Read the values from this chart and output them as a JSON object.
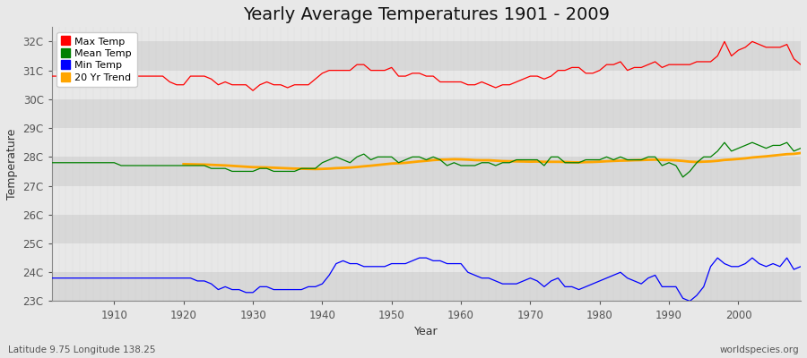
{
  "title": "Yearly Average Temperatures 1901 - 2009",
  "xlabel": "Year",
  "ylabel": "Temperature",
  "footnote_left": "Latitude 9.75 Longitude 138.25",
  "footnote_right": "worldspecies.org",
  "years": [
    1901,
    1902,
    1903,
    1904,
    1905,
    1906,
    1907,
    1908,
    1909,
    1910,
    1911,
    1912,
    1913,
    1914,
    1915,
    1916,
    1917,
    1918,
    1919,
    1920,
    1921,
    1922,
    1923,
    1924,
    1925,
    1926,
    1927,
    1928,
    1929,
    1930,
    1931,
    1932,
    1933,
    1934,
    1935,
    1936,
    1937,
    1938,
    1939,
    1940,
    1941,
    1942,
    1943,
    1944,
    1945,
    1946,
    1947,
    1948,
    1949,
    1950,
    1951,
    1952,
    1953,
    1954,
    1955,
    1956,
    1957,
    1958,
    1959,
    1960,
    1961,
    1962,
    1963,
    1964,
    1965,
    1966,
    1967,
    1968,
    1969,
    1970,
    1971,
    1972,
    1973,
    1974,
    1975,
    1976,
    1977,
    1978,
    1979,
    1980,
    1981,
    1982,
    1983,
    1984,
    1985,
    1986,
    1987,
    1988,
    1989,
    1990,
    1991,
    1992,
    1993,
    1994,
    1995,
    1996,
    1997,
    1998,
    1999,
    2000,
    2001,
    2002,
    2003,
    2004,
    2005,
    2006,
    2007,
    2008,
    2009
  ],
  "max_temp": [
    30.8,
    30.8,
    30.8,
    30.8,
    30.8,
    30.8,
    30.8,
    30.8,
    30.8,
    30.8,
    30.8,
    30.8,
    30.8,
    30.8,
    30.8,
    30.8,
    30.8,
    30.6,
    30.5,
    30.5,
    30.8,
    30.8,
    30.8,
    30.7,
    30.5,
    30.6,
    30.5,
    30.5,
    30.5,
    30.3,
    30.5,
    30.6,
    30.5,
    30.5,
    30.4,
    30.5,
    30.5,
    30.5,
    30.7,
    30.9,
    31.0,
    31.0,
    31.0,
    31.0,
    31.2,
    31.2,
    31.0,
    31.0,
    31.0,
    31.1,
    30.8,
    30.8,
    30.9,
    30.9,
    30.8,
    30.8,
    30.6,
    30.6,
    30.6,
    30.6,
    30.5,
    30.5,
    30.6,
    30.5,
    30.4,
    30.5,
    30.5,
    30.6,
    30.7,
    30.8,
    30.8,
    30.7,
    30.8,
    31.0,
    31.0,
    31.1,
    31.1,
    30.9,
    30.9,
    31.0,
    31.2,
    31.2,
    31.3,
    31.0,
    31.1,
    31.1,
    31.2,
    31.3,
    31.1,
    31.2,
    31.2,
    31.2,
    31.2,
    31.3,
    31.3,
    31.3,
    31.5,
    32.0,
    31.5,
    31.7,
    31.8,
    32.0,
    31.9,
    31.8,
    31.8,
    31.8,
    31.9,
    31.4,
    31.2
  ],
  "mean_temp": [
    27.8,
    27.8,
    27.8,
    27.8,
    27.8,
    27.8,
    27.8,
    27.8,
    27.8,
    27.8,
    27.7,
    27.7,
    27.7,
    27.7,
    27.7,
    27.7,
    27.7,
    27.7,
    27.7,
    27.7,
    27.7,
    27.7,
    27.7,
    27.6,
    27.6,
    27.6,
    27.5,
    27.5,
    27.5,
    27.5,
    27.6,
    27.6,
    27.5,
    27.5,
    27.5,
    27.5,
    27.6,
    27.6,
    27.6,
    27.8,
    27.9,
    28.0,
    27.9,
    27.8,
    28.0,
    28.1,
    27.9,
    28.0,
    28.0,
    28.0,
    27.8,
    27.9,
    28.0,
    28.0,
    27.9,
    28.0,
    27.9,
    27.7,
    27.8,
    27.7,
    27.7,
    27.7,
    27.8,
    27.8,
    27.7,
    27.8,
    27.8,
    27.9,
    27.9,
    27.9,
    27.9,
    27.7,
    28.0,
    28.0,
    27.8,
    27.8,
    27.8,
    27.9,
    27.9,
    27.9,
    28.0,
    27.9,
    28.0,
    27.9,
    27.9,
    27.9,
    28.0,
    28.0,
    27.7,
    27.8,
    27.7,
    27.3,
    27.5,
    27.8,
    28.0,
    28.0,
    28.2,
    28.5,
    28.2,
    28.3,
    28.4,
    28.5,
    28.4,
    28.3,
    28.4,
    28.4,
    28.5,
    28.2,
    28.3
  ],
  "min_temp": [
    23.8,
    23.8,
    23.8,
    23.8,
    23.8,
    23.8,
    23.8,
    23.8,
    23.8,
    23.8,
    23.8,
    23.8,
    23.8,
    23.8,
    23.8,
    23.8,
    23.8,
    23.8,
    23.8,
    23.8,
    23.8,
    23.7,
    23.7,
    23.6,
    23.4,
    23.5,
    23.4,
    23.4,
    23.3,
    23.3,
    23.5,
    23.5,
    23.4,
    23.4,
    23.4,
    23.4,
    23.4,
    23.5,
    23.5,
    23.6,
    23.9,
    24.3,
    24.4,
    24.3,
    24.3,
    24.2,
    24.2,
    24.2,
    24.2,
    24.3,
    24.3,
    24.3,
    24.4,
    24.5,
    24.5,
    24.4,
    24.4,
    24.3,
    24.3,
    24.3,
    24.0,
    23.9,
    23.8,
    23.8,
    23.7,
    23.6,
    23.6,
    23.6,
    23.7,
    23.8,
    23.7,
    23.5,
    23.7,
    23.8,
    23.5,
    23.5,
    23.4,
    23.5,
    23.6,
    23.7,
    23.8,
    23.9,
    24.0,
    23.8,
    23.7,
    23.6,
    23.8,
    23.9,
    23.5,
    23.5,
    23.5,
    23.1,
    23.0,
    23.2,
    23.5,
    24.2,
    24.5,
    24.3,
    24.2,
    24.2,
    24.3,
    24.5,
    24.3,
    24.2,
    24.3,
    24.2,
    24.5,
    24.1,
    24.2
  ],
  "colors": {
    "max": "#ff0000",
    "mean": "#008000",
    "min": "#0000ff",
    "trend": "#ffa500",
    "bg_dark": "#d8d8d8",
    "bg_light": "#e8e8e8",
    "grid_v": "#cccccc"
  },
  "ylim": [
    23.0,
    32.5
  ],
  "yticks": [
    23,
    24,
    25,
    26,
    27,
    28,
    29,
    30,
    31,
    32
  ],
  "ytick_labels": [
    "23C",
    "24C",
    "25C",
    "26C",
    "27C",
    "28C",
    "29C",
    "30C",
    "31C",
    "32C"
  ],
  "xticks": [
    1910,
    1920,
    1930,
    1940,
    1950,
    1960,
    1970,
    1980,
    1990,
    2000
  ],
  "trend_window": 20,
  "title_fontsize": 14,
  "axis_fontsize": 9,
  "tick_fontsize": 8.5
}
